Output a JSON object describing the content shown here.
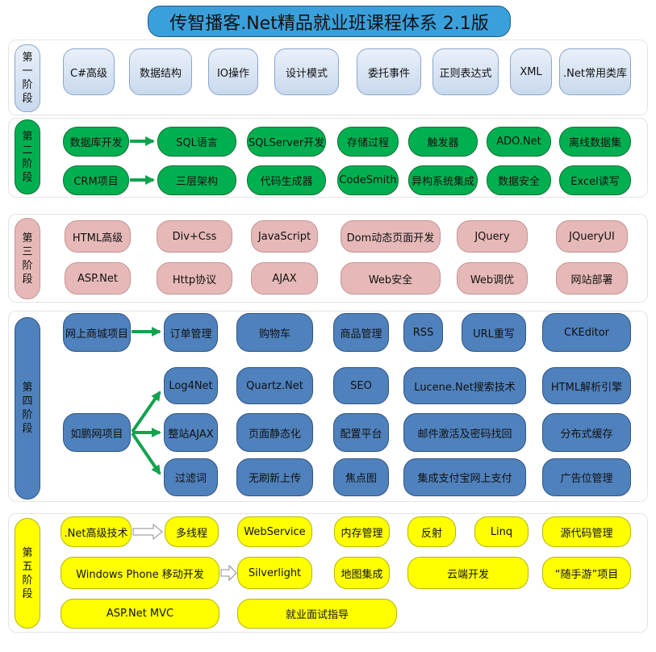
{
  "title": "传智播客.Net精品就业班课程体系 2.1版",
  "colors": {
    "title": "#3aa0dc",
    "stage1": "#c9d9ee",
    "stage2": "#00b050",
    "stage3": "#e6b9b8",
    "stage4": "#4f81bd",
    "stage5": "#ffff00",
    "arrow": "#12a24e"
  },
  "stage1": {
    "label": "第一阶段",
    "items": [
      "C#高级",
      "数据结构",
      "IO操作",
      "设计模式",
      "委托事件",
      "正则表达式",
      "XML",
      ".Net常用类库"
    ]
  },
  "stage2": {
    "label": "第二阶段",
    "rows": [
      [
        "数据库开发",
        "SQL语言",
        "SQLServer开发",
        "存储过程",
        "触发器",
        "ADO.Net",
        "离线数据集"
      ],
      [
        "CRM项目",
        "三层架构",
        "代码生成器",
        "CodeSmith",
        "异构系统集成",
        "数据安全",
        "Excel读写"
      ]
    ]
  },
  "stage3": {
    "label": "第三阶段",
    "rows": [
      [
        "HTML高级",
        "Div+Css",
        "JavaScript",
        "Dom动态页面开发",
        "JQuery",
        "JQueryUI"
      ],
      [
        "ASP.Net",
        "Http协议",
        "AJAX",
        "Web安全",
        "Web调优",
        "网站部署"
      ]
    ]
  },
  "stage4": {
    "label": "第四阶段",
    "projects": [
      "网上商城项目",
      "如鹏网项目"
    ],
    "rows": [
      [
        "订单管理",
        "购物车",
        "商品管理",
        "RSS",
        "URL重写",
        "CKEditor"
      ],
      [
        "Log4Net",
        "Quartz.Net",
        "SEO",
        "Lucene.Net搜索技术",
        "HTML解析引擎"
      ],
      [
        "整站AJAX",
        "页面静态化",
        "配置平台",
        "邮件激活及密码找回",
        "分布式缓存"
      ],
      [
        "过滤词",
        "无刷新上传",
        "焦点图",
        "集成支付宝网上支付",
        "广告位管理"
      ]
    ]
  },
  "stage5": {
    "label": "第五阶段",
    "rows": [
      [
        ".Net高级技术",
        "多线程",
        "WebService",
        "内存管理",
        "反射",
        "Linq",
        "源代码管理"
      ],
      [
        "Windows Phone 移动开发",
        "Silverlight",
        "地图集成",
        "云端开发",
        "“随手游”项目"
      ],
      [
        "ASP.Net MVC",
        "就业面试指导"
      ]
    ]
  }
}
